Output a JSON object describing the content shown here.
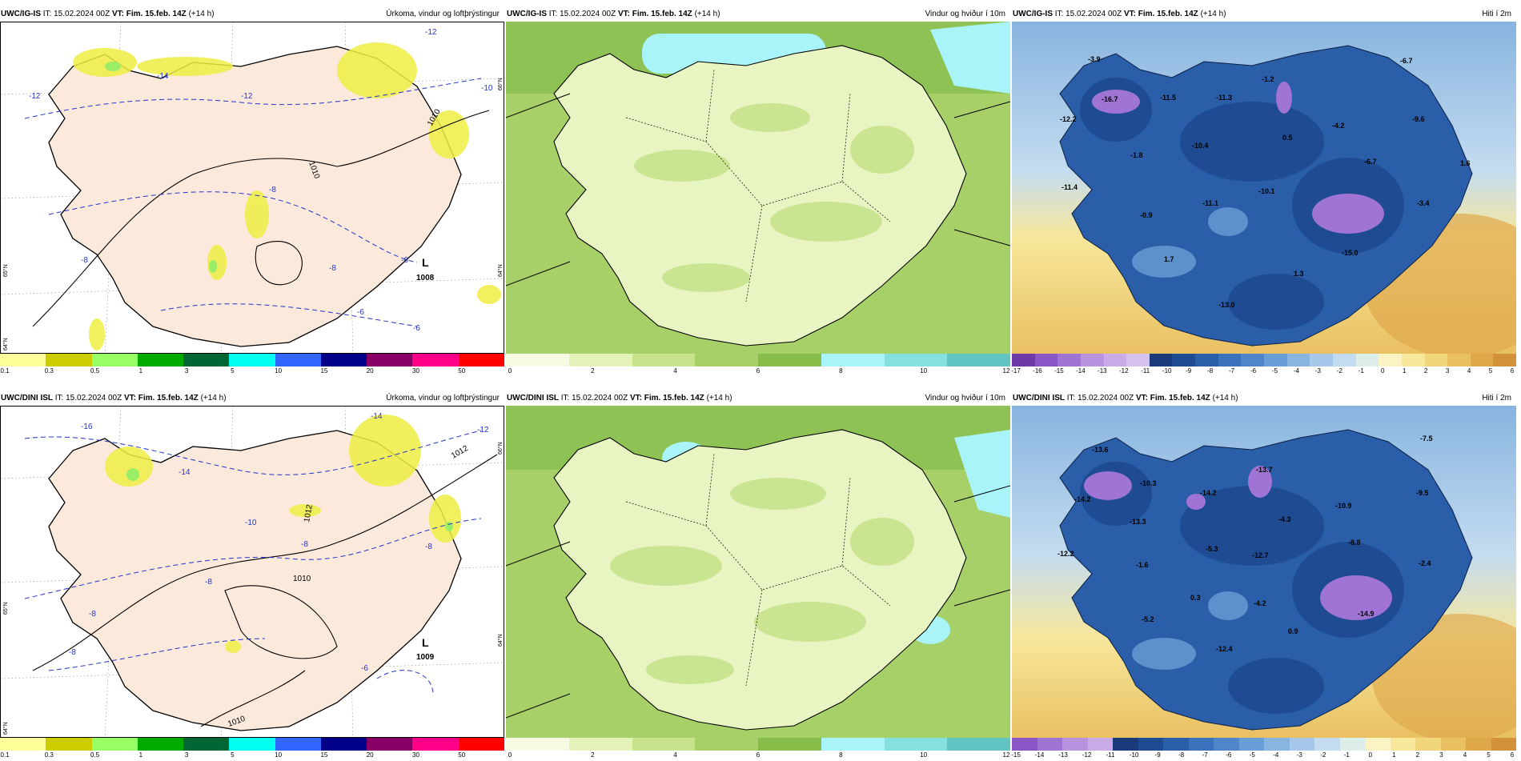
{
  "rows": [
    {
      "model": "UWC/IG-IS",
      "it": "15.02.2024 00Z",
      "vt": "Fim. 15.feb. 14Z",
      "lead": "(+14 h)",
      "precip": {
        "title": "Úrkoma, vindur og loftþrýstingur",
        "low_letter": "L",
        "low_value": "1008",
        "isobars": [
          "1010",
          "1010"
        ],
        "temps": [
          "-12",
          "-14",
          "-12",
          "-12",
          "-10",
          "-8",
          "-8",
          "-6",
          "-8",
          "-6",
          "-6"
        ],
        "lat_labels": [
          "66°N",
          "65°N",
          "64°N",
          "64°N"
        ]
      },
      "wind": {
        "title": "Vindur og hviður í 10m"
      },
      "temp": {
        "title": "Hiti í 2m",
        "values": [
          "-3.9",
          "-16.7",
          "-12.2",
          "-11.5",
          "-11.3",
          "-1.2",
          "-6.7",
          "-9.6",
          "-4.2",
          "0.5",
          "-10.4",
          "-1.8",
          "-6.7",
          "1.6",
          "-11.4",
          "-10.1",
          "-3.4",
          "-11.1",
          "-0.9",
          "-15.0",
          "1.7",
          "1.3",
          "-13.0"
        ],
        "colorbar_min": -17
      }
    },
    {
      "model": "UWC/DINI ISL",
      "it": "15.02.2024 00Z",
      "vt": "Fim. 15.feb. 14Z",
      "lead": "(+14 h)",
      "precip": {
        "title": "Úrkoma, vindur og loftþrýstingur",
        "low_letter": "L",
        "low_value": "1009",
        "isobars": [
          "1012",
          "1012",
          "1010",
          "1010"
        ],
        "temps": [
          "-16",
          "-14",
          "-12",
          "-14",
          "-10",
          "-8",
          "-8",
          "-8",
          "-8",
          "-6",
          "-8"
        ],
        "lat_labels": [
          "66°N",
          "65°N",
          "64°N",
          "64°N"
        ]
      },
      "wind": {
        "title": "Vindur og hviður í 10m"
      },
      "temp": {
        "title": "Hiti í 2m",
        "values": [
          "-13.6",
          "-7.5",
          "-14.2",
          "-10.3",
          "-13.7",
          "-14.2",
          "-9.5",
          "-13.3",
          "-4.3",
          "-10.9",
          "-12.2",
          "-1.6",
          "-5.3",
          "-12.7",
          "-8.8",
          "-2.4",
          "0.3",
          "-4.2",
          "-14.9",
          "-5.2",
          "0.9",
          "-12.4"
        ],
        "colorbar_min": -15
      }
    }
  ],
  "legends": {
    "precip": {
      "colors": [
        "#ffff99",
        "#cccc00",
        "#99ff66",
        "#00aa00",
        "#006633",
        "#00ffee",
        "#3366ff",
        "#000088",
        "#880066",
        "#ff0088",
        "#ff0000"
      ],
      "ticks": [
        "0.1",
        "0.3",
        "0.5",
        "1",
        "3",
        "5",
        "10",
        "15",
        "20",
        "30",
        "50"
      ]
    },
    "wind": {
      "colors": [
        "#f7fbe4",
        "#e2f2b8",
        "#c7e38c",
        "#a7d068",
        "#88bd4a",
        "#a8f4f8",
        "#86e0e0",
        "#62c4c2"
      ],
      "ticks": [
        "0",
        "2",
        "4",
        "6",
        "8",
        "10",
        "12"
      ]
    },
    "temp_top": {
      "colors": [
        "#6e3aa8",
        "#8a55c4",
        "#a074d4",
        "#b894e0",
        "#c9abe8",
        "#d6c2ef",
        "#1b3a7a",
        "#1f4b93",
        "#2a5ea8",
        "#3a72bb",
        "#4e86c9",
        "#6a9ed6",
        "#88b4e0",
        "#a6c8ea",
        "#c4dcf0",
        "#ddedea",
        "#fbf3c3",
        "#f7e79b",
        "#f1d67c",
        "#e9c062",
        "#dfa84b",
        "#d3923a"
      ],
      "ticks": [
        "-17",
        "-16",
        "-15",
        "-14",
        "-13",
        "-12",
        "-11",
        "-10",
        "-9",
        "-8",
        "-7",
        "-6",
        "-5",
        "-4",
        "-3",
        "-2",
        "-1",
        "0",
        "1",
        "2",
        "3",
        "4",
        "5",
        "6"
      ]
    },
    "temp_bottom": {
      "colors": [
        "#8a55c4",
        "#a074d4",
        "#b894e0",
        "#c9abe8",
        "#1b3a7a",
        "#1f4b93",
        "#2a5ea8",
        "#3a72bb",
        "#4e86c9",
        "#6a9ed6",
        "#88b4e0",
        "#a6c8ea",
        "#c4dcf0",
        "#ddedea",
        "#fbf3c3",
        "#f7e79b",
        "#f1d67c",
        "#e9c062",
        "#dfa84b",
        "#d3923a"
      ],
      "ticks": [
        "-15",
        "-14",
        "-13",
        "-12",
        "-11",
        "-10",
        "-9",
        "-8",
        "-7",
        "-6",
        "-5",
        "-4",
        "-3",
        "-2",
        "-1",
        "0",
        "1",
        "2",
        "3",
        "4",
        "5",
        "6"
      ]
    }
  }
}
